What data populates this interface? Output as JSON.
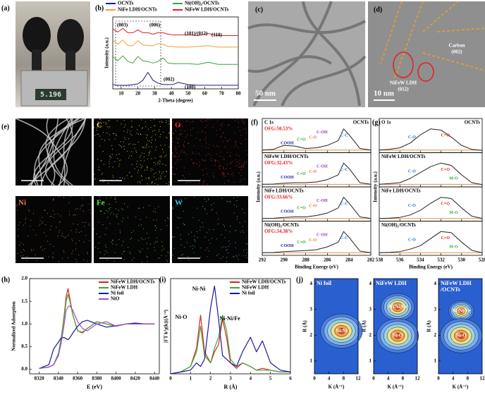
{
  "a": {
    "label": "(a)",
    "balance_display": "5.196"
  },
  "b": {
    "label": "(b)",
    "type": "line",
    "xlabel": "2-Theta (degree)",
    "ylabel": "Intensity (a.u.)",
    "x": [
      5,
      8,
      11,
      14,
      17,
      20,
      23,
      26,
      29,
      32,
      35,
      38,
      41,
      44,
      50,
      56,
      62,
      68,
      74,
      80
    ],
    "xlim": [
      5,
      80
    ],
    "ylim": [
      0,
      10
    ],
    "xticks": [
      10,
      20,
      30,
      40,
      50,
      60,
      70,
      80
    ],
    "series": [
      {
        "name": "OCNTs",
        "color": "#1a1a8c",
        "values": [
          0.6,
          0.5,
          0.5,
          0.5,
          0.6,
          0.7,
          1.2,
          2.3,
          1.2,
          0.8,
          0.6,
          0.6,
          0.6,
          0.9,
          0.6,
          0.5,
          0.5,
          0.5,
          0.5,
          0.5
        ]
      },
      {
        "name": "Ni(OH)₂/OCNTs",
        "color": "#3aa63a",
        "values": [
          4.5,
          3.9,
          4.6,
          3.8,
          3.6,
          4.5,
          3.9,
          3.8,
          3.6,
          3.8,
          4.3,
          3.6,
          3.5,
          3.5,
          3.5,
          3.4,
          3.7,
          3.4,
          3.4,
          3.4
        ]
      },
      {
        "name": "NiFe LDH/OCNTs",
        "color": "#f0a030",
        "values": [
          6.8,
          6.2,
          6.8,
          6.0,
          6.0,
          6.7,
          6.1,
          6.0,
          6.0,
          6.3,
          6.2,
          5.9,
          5.9,
          5.8,
          5.8,
          5.9,
          6.0,
          5.8,
          5.8,
          5.8
        ]
      },
      {
        "name": "NiFeW LDH/OCNTs",
        "color": "#e02020",
        "values": [
          8.3,
          7.9,
          8.4,
          7.8,
          7.8,
          8.2,
          7.8,
          7.8,
          7.6,
          7.8,
          7.8,
          7.6,
          7.5,
          7.5,
          7.5,
          7.4,
          7.7,
          7.4,
          7.4,
          7.4
        ]
      }
    ],
    "annotations": [
      "(003)",
      "(006)",
      "(101)/(012)",
      "(110)",
      "(002)",
      "(100)"
    ]
  },
  "c": {
    "label": "(c)",
    "scale_bar": "50 nm"
  },
  "d": {
    "label": "(d)",
    "scale_bar": "10 nm",
    "annotations": [
      "Carbon",
      "(002)",
      "NiFeW LDH",
      "(012)"
    ]
  },
  "e": {
    "label": "(e)",
    "maps": [
      {
        "name": "C",
        "color": "#e8e040"
      },
      {
        "name": "O",
        "color": "#e03030"
      },
      {
        "name": "Ni",
        "color": "#e87a40"
      },
      {
        "name": "Fe",
        "color": "#60e040"
      },
      {
        "name": "W",
        "color": "#40c8e0"
      }
    ]
  },
  "f": {
    "label": "(f)",
    "title": "C 1s",
    "xlabel": "Binding Energy (eV)",
    "ylabel": "Intensity (a.u.)",
    "x": [
      292,
      291,
      290,
      289,
      288,
      287,
      286,
      285,
      284.5,
      284,
      283,
      282
    ],
    "xlim": [
      292,
      282
    ],
    "ylim": [
      0,
      1.15
    ],
    "xticks": [
      292,
      290,
      288,
      286,
      284,
      282
    ],
    "components": [
      {
        "name": "COOH",
        "color": "#1a1a9c"
      },
      {
        "name": "C=O",
        "color": "#3aa63a"
      },
      {
        "name": "C-O",
        "color": "#e08020"
      },
      {
        "name": "C-OH",
        "color": "#9040b0"
      },
      {
        "name": "C-C",
        "color": "#2a70c0"
      }
    ],
    "panels": [
      {
        "sample": "OCNTs",
        "ofg": "OFG:50.53%",
        "values": [
          0.05,
          0.08,
          0.25,
          0.22,
          0.12,
          0.15,
          0.25,
          0.45,
          0.95,
          0.7,
          0.12,
          0.05
        ]
      },
      {
        "sample": "NiFeW LDH/OCNTs",
        "ofg": "OFG:32.43%",
        "values": [
          0.05,
          0.06,
          0.1,
          0.12,
          0.12,
          0.15,
          0.25,
          0.45,
          0.95,
          0.72,
          0.12,
          0.05
        ]
      },
      {
        "sample": "NiFe LDH/OCNTs",
        "ofg": "OFG:33.66%",
        "values": [
          0.05,
          0.06,
          0.1,
          0.12,
          0.12,
          0.18,
          0.28,
          0.5,
          0.95,
          0.7,
          0.12,
          0.05
        ]
      },
      {
        "sample": "Ni(OH)₂/OCNTs",
        "ofg": "OFG:34.38%",
        "values": [
          0.05,
          0.06,
          0.1,
          0.12,
          0.14,
          0.18,
          0.3,
          0.5,
          0.95,
          0.7,
          0.12,
          0.05
        ]
      }
    ]
  },
  "g": {
    "label": "(g)",
    "title": "O 1s",
    "xlabel": "Binding Energy (eV)",
    "ylabel": "Intensity (a.u.)",
    "x": [
      538,
      537,
      536,
      535,
      534,
      533,
      532,
      531,
      530,
      529,
      528
    ],
    "xlim": [
      538,
      528
    ],
    "ylim": [
      0,
      1.15
    ],
    "xticks": [
      538,
      536,
      534,
      532,
      530,
      528
    ],
    "panels": [
      {
        "sample": "OCNTs",
        "components": [
          {
            "name": "C-O",
            "color": "#2a70c0"
          },
          {
            "name": "C=O",
            "color": "#e02020"
          }
        ],
        "values": [
          0.05,
          0.08,
          0.15,
          0.35,
          0.7,
          0.95,
          0.9,
          0.6,
          0.25,
          0.08,
          0.04
        ]
      },
      {
        "sample": "NiFeW LDH/OCNTs",
        "components": [
          {
            "name": "C-O",
            "color": "#2a70c0"
          },
          {
            "name": "C=O",
            "color": "#e02020"
          },
          {
            "name": "M-O",
            "color": "#3aa63a"
          }
        ],
        "values": [
          0.05,
          0.08,
          0.12,
          0.3,
          0.55,
          0.8,
          0.95,
          0.85,
          0.45,
          0.12,
          0.04
        ]
      },
      {
        "sample": "NiFe LDH/OCNTs",
        "components": [
          {
            "name": "C-O",
            "color": "#2a70c0"
          },
          {
            "name": "C=O",
            "color": "#e02020"
          },
          {
            "name": "M-O",
            "color": "#3aa63a"
          }
        ],
        "values": [
          0.05,
          0.07,
          0.1,
          0.2,
          0.4,
          0.7,
          0.95,
          0.9,
          0.5,
          0.15,
          0.05
        ]
      },
      {
        "sample": "Ni(OH)₂/OCNTs",
        "components": [
          {
            "name": "C-O",
            "color": "#2a70c0"
          },
          {
            "name": "C=O",
            "color": "#e02020"
          },
          {
            "name": "M-O",
            "color": "#3aa63a"
          }
        ],
        "values": [
          0.05,
          0.07,
          0.1,
          0.2,
          0.35,
          0.65,
          0.95,
          0.9,
          0.5,
          0.15,
          0.05
        ]
      }
    ]
  },
  "h": {
    "label": "(h)",
    "type": "line",
    "xlabel": "E (eV)",
    "ylabel": "Normalized Adsorption",
    "x": [
      8320,
      8330,
      8335,
      8340,
      8343,
      8346,
      8348,
      8350,
      8352,
      8355,
      8360,
      8365,
      8370,
      8380,
      8390,
      8400,
      8410,
      8420,
      8430,
      8440
    ],
    "xlim": [
      8310,
      8445
    ],
    "ylim": [
      -0.1,
      2.0
    ],
    "xticks": [
      8320,
      8340,
      8360,
      8380,
      8400,
      8420,
      8440
    ],
    "yticks": [
      {
        "value": 0,
        "label": "0.0"
      },
      0.5,
      {
        "value": 1,
        "label": "1.0"
      },
      1.5,
      {
        "value": 2,
        "label": "2.0"
      }
    ],
    "series": [
      {
        "name": "NiFeW LDH/OCNTs",
        "color": "#e02020",
        "values": [
          0.02,
          0.05,
          0.1,
          0.35,
          0.7,
          1.2,
          1.6,
          1.78,
          1.55,
          1.2,
          0.85,
          0.8,
          0.9,
          1.05,
          1.0,
          0.95,
          1.0,
          1.0,
          1.0,
          1.0
        ]
      },
      {
        "name": "NiFeW LDH",
        "color": "#3aa63a",
        "values": [
          0.02,
          0.05,
          0.1,
          0.35,
          0.7,
          1.15,
          1.5,
          1.65,
          1.5,
          1.2,
          0.85,
          0.82,
          0.9,
          1.05,
          1.0,
          0.95,
          1.0,
          1.0,
          1.0,
          1.0
        ]
      },
      {
        "name": "Ni foil",
        "color": "#1a1aa0",
        "values": [
          0.02,
          0.1,
          0.45,
          0.6,
          0.7,
          0.7,
          0.68,
          0.65,
          0.7,
          0.8,
          0.95,
          1.05,
          1.08,
          1.0,
          0.93,
          0.96,
          1.0,
          1.02,
          1.0,
          1.0
        ]
      },
      {
        "name": "NiO",
        "color": "#a050c0",
        "values": [
          0.02,
          0.05,
          0.1,
          0.3,
          0.6,
          1.0,
          1.3,
          1.38,
          1.4,
          1.3,
          1.05,
          0.9,
          0.85,
          1.0,
          1.05,
          0.95,
          1.0,
          1.0,
          1.0,
          1.0
        ]
      }
    ]
  },
  "i": {
    "label": "(i)",
    "type": "line",
    "xlabel": "R (Å)",
    "ylabel": "|FT k³χ(k)|(Å⁻⁴)",
    "x": [
      0,
      0.5,
      1.0,
      1.3,
      1.5,
      1.7,
      2.0,
      2.2,
      2.4,
      2.6,
      2.8,
      3.0,
      3.3,
      3.6,
      4.0,
      4.3,
      4.6,
      5.0,
      5.5,
      6.0
    ],
    "xlim": [
      0,
      6
    ],
    "ylim": [
      0,
      2.6
    ],
    "xticks": [
      0,
      1,
      2,
      3,
      4,
      5,
      6
    ],
    "series": [
      {
        "name": "NiFeW LDH/OCNTs",
        "color": "#e02020",
        "values": [
          0,
          0.05,
          0.2,
          0.7,
          1.6,
          0.6,
          0.3,
          0.6,
          0.8,
          1.5,
          1.0,
          0.3,
          0.15,
          0.3,
          0.2,
          0.1,
          0.15,
          0.1,
          0.05,
          0.05
        ]
      },
      {
        "name": "NiFeW LDH",
        "color": "#3aa63a",
        "values": [
          0,
          0.05,
          0.2,
          0.6,
          1.3,
          0.5,
          0.3,
          0.7,
          1.0,
          1.6,
          1.2,
          0.4,
          0.2,
          0.3,
          0.2,
          0.1,
          0.1,
          0.1,
          0.05,
          0.05
        ]
      },
      {
        "name": "Ni foil",
        "color": "#1a1aa0",
        "values": [
          0,
          0.05,
          0.1,
          0.3,
          0.2,
          0.4,
          1.8,
          2.4,
          1.5,
          0.5,
          0.4,
          0.3,
          0.2,
          0.6,
          1.0,
          0.6,
          0.9,
          0.3,
          0.1,
          0.05
        ]
      }
    ],
    "annotations": [
      "Ni-O",
      "Ni-Ni",
      "Ni-Ni/Fe"
    ]
  },
  "j": {
    "label": "(j)",
    "xlabel": "K (Å⁻¹)",
    "ylabel": "R (Å)",
    "xlim": [
      0,
      12
    ],
    "ylim": [
      0.5,
      4.2
    ],
    "xticks": [
      0,
      4,
      8,
      12
    ],
    "yticks": [
      1,
      2,
      3,
      4
    ],
    "panels": [
      {
        "title": [
          "Ni foil"
        ],
        "peaks": [
          "Ni-Ni"
        ]
      },
      {
        "title": [
          "NiFeW LDH"
        ],
        "peaks": [
          "Ni-Ni/Fe",
          "Ni-O"
        ]
      },
      {
        "title": [
          "NiFeW LDH",
          "/OCNTs"
        ],
        "peaks": [
          "Ni-Ni/Fe",
          "Ni-O"
        ]
      }
    ]
  }
}
